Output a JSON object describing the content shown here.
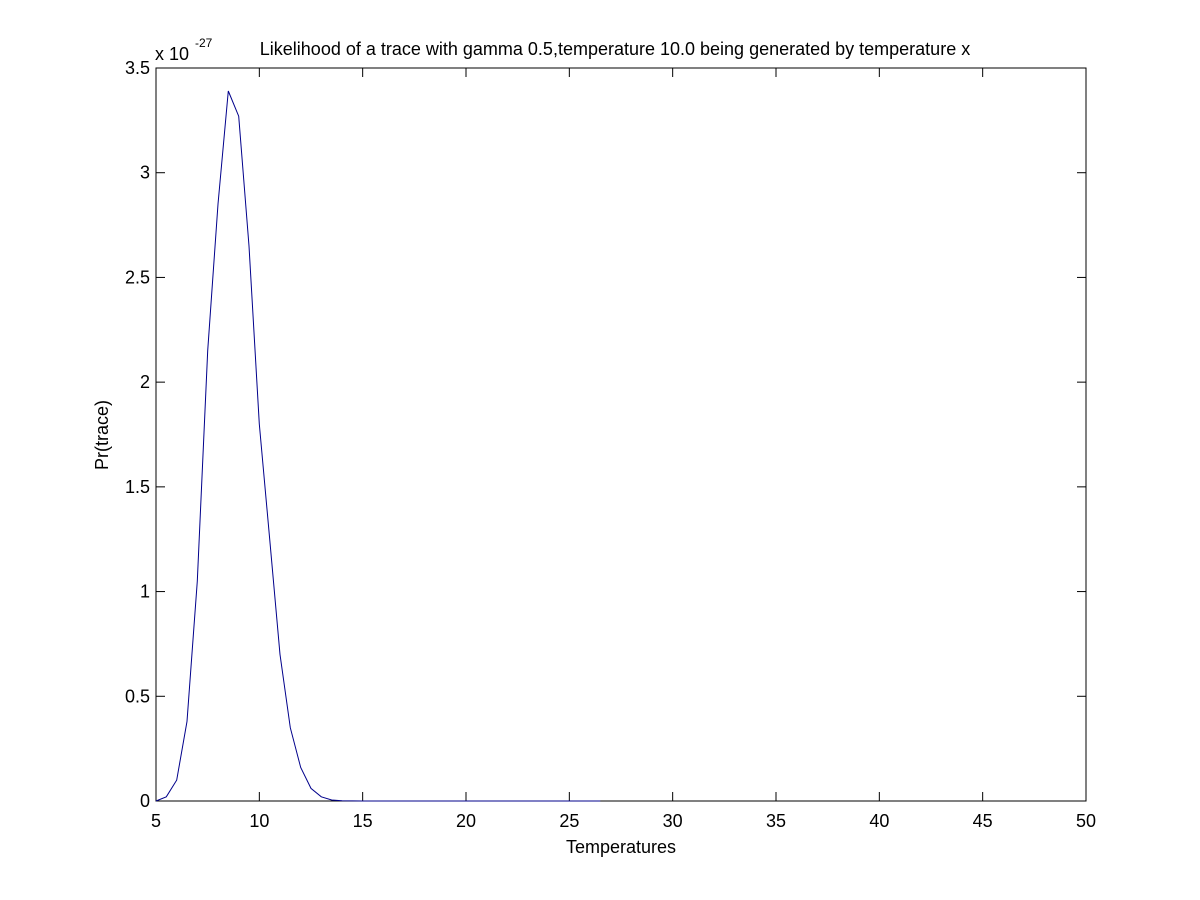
{
  "chart_data": {
    "type": "line",
    "title": "Likelihood of a trace with gamma 0.5,temperature 10.0 being generated by temperature x",
    "xlabel": "Temperatures",
    "ylabel": "Pr(trace)",
    "y_exponent_label": "x 10",
    "y_exponent_value": "-27",
    "xlim": [
      5,
      50
    ],
    "ylim": [
      0,
      3.5
    ],
    "xticks": [
      5,
      10,
      15,
      20,
      25,
      30,
      35,
      40,
      45,
      50
    ],
    "xtick_labels": [
      "5",
      "10",
      "15",
      "20",
      "25",
      "30",
      "35",
      "40",
      "45",
      "50"
    ],
    "yticks": [
      0,
      0.5,
      1,
      1.5,
      2,
      2.5,
      3,
      3.5
    ],
    "ytick_labels": [
      "0",
      "0.5",
      "1",
      "1.5",
      "2",
      "2.5",
      "3",
      "3.5"
    ],
    "grid": false,
    "line_color": "#00008b",
    "series": [
      {
        "x": [
          5.0,
          5.5,
          6.0,
          6.5,
          7.0,
          7.5,
          8.0,
          8.5,
          9.0,
          9.5,
          10.0,
          10.5,
          11.0,
          11.5,
          12.0,
          12.5,
          13.0,
          13.5,
          14.0,
          15.0,
          16.0,
          18.0,
          20.0,
          22.0,
          24.0,
          26.5
        ],
        "y": [
          0.0,
          0.02,
          0.1,
          0.38,
          1.05,
          2.15,
          2.85,
          3.39,
          3.27,
          2.65,
          1.8,
          1.25,
          0.7,
          0.35,
          0.16,
          0.06,
          0.02,
          0.005,
          0.001,
          0.0,
          0.0,
          0.0,
          0.0,
          0.0,
          0.0,
          0.0
        ]
      }
    ]
  }
}
